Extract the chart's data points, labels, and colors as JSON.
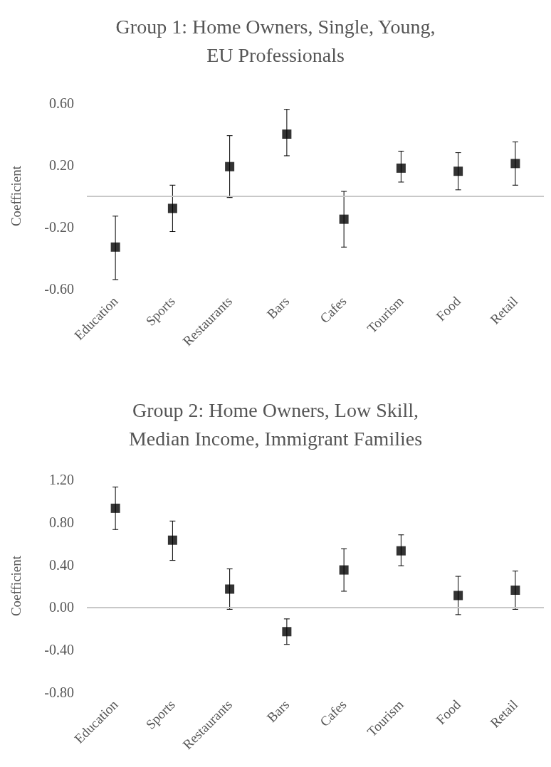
{
  "chart_data": [
    {
      "type": "scatter",
      "title": "Group 1: Home Owners, Single, Young,\nEU Professionals",
      "ylabel": "Coefficient",
      "categories": [
        "Education",
        "Sports",
        "Restaurants",
        "Bars",
        "Cafes",
        "Tourism",
        "Food",
        "Retail"
      ],
      "series": [
        {
          "color": "#000000",
          "values": [
            -0.33,
            -0.08,
            0.19,
            0.4,
            -0.15,
            0.18,
            0.16,
            0.21
          ],
          "errors": [
            [
              -0.54,
              -0.13
            ],
            [
              -0.23,
              0.07
            ],
            [
              -0.01,
              0.39
            ],
            [
              0.26,
              0.56
            ],
            [
              -0.33,
              0.03
            ],
            [
              0.09,
              0.29
            ],
            [
              0.04,
              0.28
            ],
            [
              0.07,
              0.35
            ]
          ]
        }
      ],
      "ylim": [
        -0.6,
        0.6
      ],
      "yticks": [
        {
          "value": -0.6,
          "label": "-0.60"
        },
        {
          "value": -0.2,
          "label": "-0.20"
        },
        {
          "value": 0.2,
          "label": "0.20"
        },
        {
          "value": 0.6,
          "label": "0.60"
        }
      ],
      "ref_lines": [
        {
          "axis": "y",
          "value": 0,
          "color": "#c8c8c8"
        }
      ],
      "marker": "square"
    },
    {
      "type": "scatter",
      "title": "Group 2: Home Owners, Low Skill,\nMedian Income, Immigrant Families",
      "ylabel": "Coefficient",
      "categories": [
        "Education",
        "Sports",
        "Restaurants",
        "Bars",
        "Cafes",
        "Tourism",
        "Food",
        "Retail"
      ],
      "series": [
        {
          "color": "#000000",
          "values": [
            0.93,
            0.63,
            0.17,
            -0.23,
            0.35,
            0.53,
            0.11,
            0.16
          ],
          "errors": [
            [
              0.73,
              1.13
            ],
            [
              0.44,
              0.81
            ],
            [
              -0.02,
              0.36
            ],
            [
              -0.35,
              -0.11
            ],
            [
              0.15,
              0.55
            ],
            [
              0.39,
              0.68
            ],
            [
              -0.07,
              0.29
            ],
            [
              -0.02,
              0.34
            ]
          ]
        }
      ],
      "ylim": [
        -0.8,
        1.2
      ],
      "yticks": [
        {
          "value": -0.8,
          "label": "-0.80"
        },
        {
          "value": -0.4,
          "label": "-0.40"
        },
        {
          "value": 0,
          "label": "0.00"
        },
        {
          "value": 0.4,
          "label": "0.40"
        },
        {
          "value": 0.8,
          "label": "0.80"
        },
        {
          "value": 1.2,
          "label": "1.20"
        }
      ],
      "ref_lines": [
        {
          "axis": "y",
          "value": 0,
          "color": "#c8c8c8"
        }
      ],
      "marker": "square"
    }
  ]
}
